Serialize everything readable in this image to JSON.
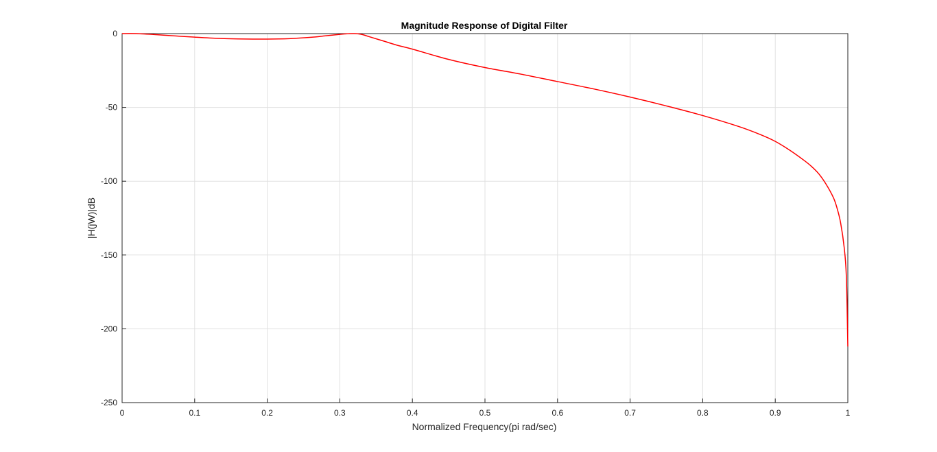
{
  "chart_data": {
    "type": "line",
    "title": "Magnitude Response of Digital Filter",
    "xlabel": "Normalized Frequency(pi rad/sec)",
    "ylabel": "|H(jW)|dB",
    "xlim": [
      0,
      1
    ],
    "ylim": [
      -250,
      0
    ],
    "xticks": [
      0,
      0.1,
      0.2,
      0.3,
      0.4,
      0.5,
      0.6,
      0.7,
      0.8,
      0.9,
      1
    ],
    "xtick_labels": [
      "0",
      "0.1",
      "0.2",
      "0.3",
      "0.4",
      "0.5",
      "0.6",
      "0.7",
      "0.8",
      "0.9",
      "1"
    ],
    "yticks": [
      0,
      -50,
      -100,
      -150,
      -200,
      -250
    ],
    "ytick_labels": [
      "0",
      "-50",
      "-100",
      "-150",
      "-200",
      "-250"
    ],
    "grid": true,
    "series": [
      {
        "color": "#ff0000",
        "x": [
          0,
          0.02,
          0.05,
          0.08,
          0.1,
          0.13,
          0.16,
          0.2,
          0.23,
          0.26,
          0.28,
          0.3,
          0.31,
          0.32,
          0.33,
          0.34,
          0.36,
          0.38,
          0.4,
          0.45,
          0.5,
          0.55,
          0.6,
          0.65,
          0.7,
          0.75,
          0.8,
          0.85,
          0.88,
          0.9,
          0.92,
          0.94,
          0.95,
          0.96,
          0.97,
          0.98,
          0.985,
          0.99,
          0.995,
          0.998,
          1.0
        ],
        "y": [
          0,
          0,
          -0.8,
          -1.8,
          -2.4,
          -3.2,
          -3.6,
          -3.7,
          -3.4,
          -2.5,
          -1.5,
          -0.5,
          -0.1,
          0,
          -0.5,
          -2,
          -5,
          -8,
          -10.5,
          -17.5,
          -23,
          -27.5,
          -32.5,
          -37.5,
          -43,
          -49,
          -55.5,
          -63,
          -68.5,
          -73,
          -79,
          -86,
          -90,
          -95,
          -102,
          -111,
          -118,
          -128,
          -145,
          -165,
          -212
        ]
      }
    ]
  }
}
